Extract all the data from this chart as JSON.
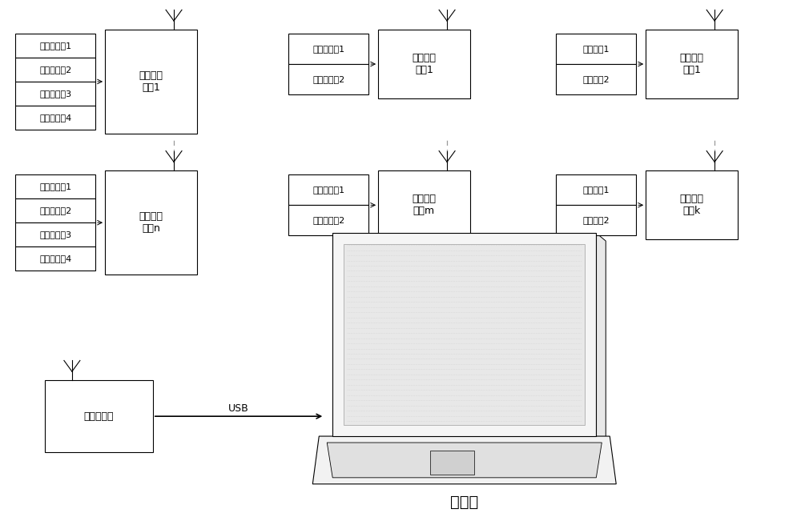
{
  "bg_color": "#ffffff",
  "line_color": "#000000",
  "dashed_color": "#999999",
  "font_size_sensor": 8,
  "font_size_node": 9,
  "font_size_usb": 9,
  "font_size_computer": 14,
  "strain_sensors_row1": [
    "应变传感器1",
    "应变传感器2",
    "应变传感器3",
    "应变传感器4"
  ],
  "strain_node1": "应变采集\n节点1",
  "strain_noden": "应变采集\n节点n",
  "disp_sensors": [
    "位移传感器1",
    "位移传感器2"
  ],
  "disp_node1": "位移采集\n节点1",
  "disp_nodem": "位移采集\n节点m",
  "force_sensors": [
    "力传感器1",
    "力传感器2"
  ],
  "force_node1": "荷载采集\n节点1",
  "force_nodek": "荷载采集\n节点k",
  "coordinator_label": "协调器节点",
  "usb_label": "USB",
  "computer_label": "计算机"
}
